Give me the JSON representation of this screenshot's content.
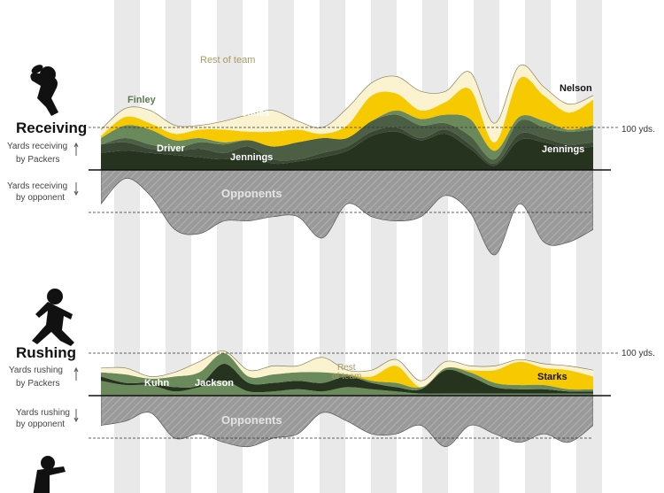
{
  "colors": {
    "column_light": "#ffffff",
    "column_dark": "#e9e9e9",
    "rest_of_team": "#fbf3d0",
    "nelson_starks": "#f7c900",
    "finley_kuhn": "#6b8a5c",
    "jones": "#4c5e44",
    "jennings_jackson": "#25331f",
    "driver": "#3a4833",
    "opponents": "#9a9a9a",
    "baseline": "#111111"
  },
  "sections": {
    "receiving": {
      "title": "Receiving",
      "packers_note": [
        "Yards receiving",
        "by Packers"
      ],
      "opponent_note": [
        "Yards receiving",
        "by opponent"
      ],
      "ref_label": "100 yds.",
      "opponents_label": "Opponents",
      "labels": {
        "rest_of_team": "Rest of team",
        "finley": "Finley",
        "jones": "Jones",
        "driver": "Driver",
        "jennings_left": "Jennings",
        "nelson": "Nelson",
        "jennings_right": "Jennings"
      }
    },
    "rushing": {
      "title": "Rushing",
      "packers_note": [
        "Yards rushing",
        "by Packers"
      ],
      "opponent_note": [
        "Yards rushing",
        "by opponent"
      ],
      "ref_label": "100 yds.",
      "opponents_label": "Opponents",
      "labels": {
        "kuhn": "Kuhn",
        "jackson": "Jackson",
        "rest_of_team": "Rest\nof team",
        "starks": "Starks"
      }
    }
  },
  "chart_data": [
    {
      "type": "area",
      "title": "Receiving",
      "units": "yds",
      "reference_line": 100,
      "games": 20,
      "series": [
        {
          "name": "Jennings",
          "values": [
            40,
            45,
            40,
            35,
            30,
            25,
            35,
            15,
            20,
            30,
            45,
            80,
            90,
            70,
            85,
            50,
            10,
            70,
            65,
            50,
            55
          ]
        },
        {
          "name": "Driver",
          "values": [
            20,
            20,
            10,
            10,
            20,
            15,
            20,
            10,
            5,
            10,
            10,
            10,
            10,
            5,
            10,
            10,
            5,
            15,
            10,
            10,
            10
          ]
        },
        {
          "name": "Jones",
          "values": [
            0,
            10,
            10,
            5,
            15,
            20,
            15,
            30,
            40,
            35,
            20,
            25,
            30,
            30,
            15,
            20,
            10,
            30,
            25,
            30,
            30
          ]
        },
        {
          "name": "Finley",
          "values": [
            15,
            30,
            35,
            20,
            10,
            5,
            0,
            0,
            0,
            0,
            0,
            0,
            10,
            15,
            20,
            40,
            20,
            10,
            15,
            5,
            10
          ]
        },
        {
          "name": "Nelson",
          "values": [
            5,
            20,
            15,
            15,
            20,
            30,
            20,
            35,
            30,
            10,
            30,
            60,
            40,
            20,
            30,
            70,
            20,
            90,
            60,
            40,
            60
          ]
        },
        {
          "name": "Rest of team",
          "values": [
            15,
            20,
            30,
            20,
            10,
            20,
            40,
            50,
            20,
            15,
            40,
            30,
            40,
            45,
            25,
            40,
            45,
            30,
            20,
            20,
            10
          ]
        },
        {
          "name": "Opponents",
          "values": [
            -80,
            -20,
            -60,
            -140,
            -150,
            -120,
            -120,
            -110,
            -110,
            -160,
            -80,
            -110,
            -120,
            -110,
            -60,
            -100,
            -200,
            -80,
            -170,
            -170,
            -140
          ]
        }
      ]
    },
    {
      "type": "area",
      "title": "Rushing",
      "units": "yds",
      "reference_line": 100,
      "games": 20,
      "series": [
        {
          "name": "Kuhn",
          "values": [
            35,
            25,
            25,
            10,
            20,
            35,
            10,
            10,
            15,
            10,
            20,
            15,
            10,
            5,
            5,
            5,
            5,
            5,
            5,
            5,
            5
          ]
        },
        {
          "name": "Jackson",
          "values": [
            10,
            5,
            5,
            10,
            5,
            40,
            20,
            20,
            20,
            20,
            25,
            15,
            10,
            10,
            55,
            40,
            15,
            10,
            10,
            5,
            5
          ]
        },
        {
          "name": "Rest of team",
          "values": [
            10,
            20,
            10,
            25,
            30,
            25,
            15,
            20,
            20,
            25,
            5,
            5,
            10,
            5,
            5,
            10,
            10,
            10,
            10,
            5,
            5
          ]
        },
        {
          "name": "Starks",
          "values": [
            0,
            0,
            0,
            0,
            0,
            0,
            0,
            0,
            0,
            0,
            0,
            10,
            40,
            0,
            0,
            5,
            30,
            55,
            40,
            45,
            30
          ]
        },
        {
          "name": "Rest (light)",
          "values": [
            10,
            15,
            5,
            10,
            25,
            5,
            15,
            20,
            15,
            35,
            10,
            15,
            15,
            15,
            15,
            10,
            10,
            5,
            10,
            10,
            15
          ]
        },
        {
          "name": "Opponents",
          "values": [
            -70,
            -60,
            -40,
            -100,
            -90,
            -110,
            -120,
            -100,
            -90,
            -40,
            -60,
            -90,
            -90,
            -70,
            -120,
            -70,
            -90,
            -110,
            -90,
            -110,
            -70
          ]
        }
      ]
    }
  ]
}
